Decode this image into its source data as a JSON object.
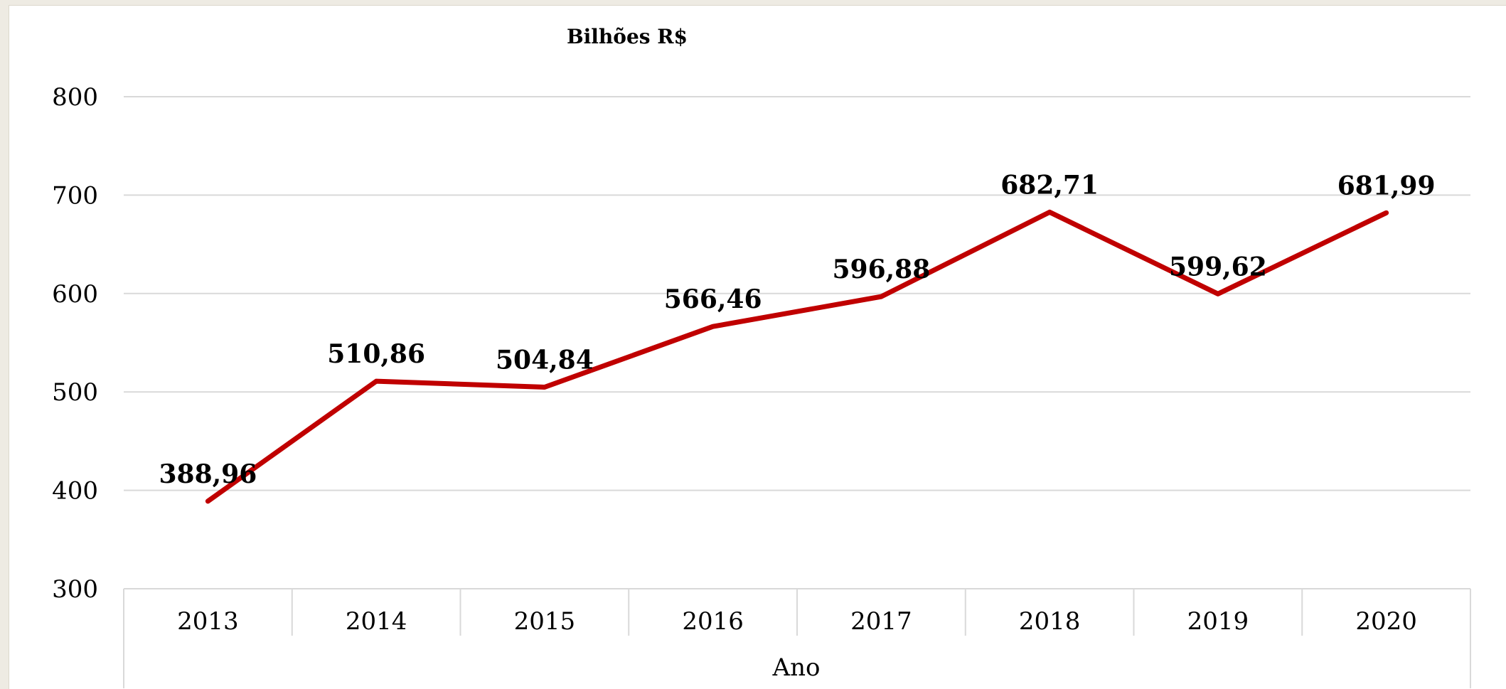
{
  "chart_data": {
    "type": "line",
    "title": "Bilhões R$",
    "xlabel": "Ano",
    "ylabel": "",
    "categories": [
      "2013",
      "2014",
      "2015",
      "2016",
      "2017",
      "2018",
      "2019",
      "2020"
    ],
    "series": [
      {
        "values": [
          388.96,
          510.86,
          504.84,
          566.46,
          596.88,
          682.71,
          599.62,
          681.99
        ],
        "labels": [
          "388,96",
          "510,86",
          "504,84",
          "566,46",
          "596,88",
          "682,71",
          "599,62",
          "681,99"
        ],
        "color": "#c00000"
      }
    ],
    "ylim": [
      300,
      800
    ],
    "yticks": [
      "300",
      "400",
      "500",
      "600",
      "700",
      "800"
    ],
    "grid": true,
    "legend": "none"
  }
}
